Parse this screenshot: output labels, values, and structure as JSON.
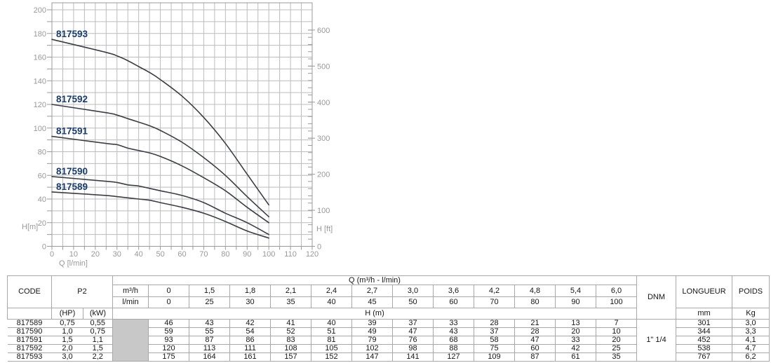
{
  "chart_data": {
    "type": "line",
    "title": "",
    "xlabel": "Q [l/min]",
    "ylabel_left": "H[m]",
    "ylabel_right": "H [ft]",
    "xlim": [
      0,
      120
    ],
    "ylim_left_m": [
      0,
      200
    ],
    "ylim_right_ft": [
      0,
      600
    ],
    "grid": "on",
    "x_grid_step": 5,
    "y_grid_step_m": 10,
    "x": [
      0,
      25,
      30,
      35,
      40,
      45,
      50,
      60,
      70,
      80,
      90,
      100
    ],
    "x_tick_labels": [
      0,
      10,
      20,
      30,
      40,
      50,
      60,
      70,
      80,
      90,
      100,
      110,
      120
    ],
    "left_tick_labels_m": [
      0,
      20,
      40,
      60,
      80,
      100,
      120,
      140,
      160,
      180,
      200
    ],
    "left_minor_step_m": 10,
    "right_tick_labels_ft": [
      0,
      100,
      200,
      300,
      400,
      500,
      600
    ],
    "right_minor_step_ft": 20,
    "series": [
      {
        "name": "817589",
        "values": [
          46,
          43,
          42,
          41,
          40,
          39,
          37,
          33,
          28,
          21,
          13,
          7
        ]
      },
      {
        "name": "817590",
        "values": [
          59,
          55,
          54,
          52,
          51,
          49,
          47,
          43,
          37,
          28,
          20,
          10
        ]
      },
      {
        "name": "817591",
        "values": [
          93,
          87,
          86,
          83,
          81,
          79,
          76,
          68,
          58,
          47,
          33,
          20
        ]
      },
      {
        "name": "817592",
        "values": [
          120,
          113,
          111,
          108,
          105,
          102,
          98,
          88,
          75,
          60,
          42,
          25
        ]
      },
      {
        "name": "817593",
        "values": [
          175,
          164,
          161,
          157,
          152,
          147,
          141,
          127,
          109,
          87,
          61,
          35
        ]
      }
    ],
    "legend_position": "curve-start-labels"
  },
  "colors": {
    "curve": "#3a3d43",
    "curve_label": "#1a3c6e",
    "grid": "#bcbcbc",
    "frame": "#9a9a9a",
    "axis_text": "#999999",
    "table_line": "#a8a8a8",
    "gray_cell": "#c8c8c8",
    "table_text": "#151515"
  },
  "table": {
    "headers": {
      "code": "CODE",
      "p2": "P2",
      "hp": "(HP)",
      "kw": "(kW)",
      "q_group": "Q (m³/h - l/min)",
      "m3h": "m³/h",
      "lmin": "l/min",
      "h_m": "H (m)",
      "dnm": "DNM",
      "longueur": "LONGUEUR",
      "poids": "POIDS",
      "mm": "mm",
      "kg": "Kg"
    },
    "m3h_values": [
      "0",
      "1,5",
      "1,8",
      "2,1",
      "2,4",
      "2,7",
      "3,0",
      "3,6",
      "4,2",
      "4,8",
      "5,4",
      "6,0"
    ],
    "lmin_values": [
      "0",
      "25",
      "30",
      "35",
      "40",
      "45",
      "50",
      "60",
      "70",
      "80",
      "90",
      "100"
    ],
    "dnm_value": "1\" 1/4",
    "rows": [
      {
        "code": "817589",
        "hp": "0,75",
        "kw": "0,55",
        "h": [
          "46",
          "43",
          "42",
          "41",
          "40",
          "39",
          "37",
          "33",
          "28",
          "21",
          "13",
          "7"
        ],
        "longueur": "301",
        "poids": "3,0"
      },
      {
        "code": "817590",
        "hp": "1,0",
        "kw": "0,75",
        "h": [
          "59",
          "55",
          "54",
          "52",
          "51",
          "49",
          "47",
          "43",
          "37",
          "28",
          "20",
          "10"
        ],
        "longueur": "344",
        "poids": "3,3"
      },
      {
        "code": "817591",
        "hp": "1,5",
        "kw": "1,1",
        "h": [
          "93",
          "87",
          "86",
          "83",
          "81",
          "79",
          "76",
          "68",
          "58",
          "47",
          "33",
          "20"
        ],
        "longueur": "452",
        "poids": "4,1"
      },
      {
        "code": "817592",
        "hp": "2,0",
        "kw": "1,5",
        "h": [
          "120",
          "113",
          "111",
          "108",
          "105",
          "102",
          "98",
          "88",
          "75",
          "60",
          "42",
          "25"
        ],
        "longueur": "538",
        "poids": "4,7"
      },
      {
        "code": "817593",
        "hp": "3,0",
        "kw": "2,2",
        "h": [
          "175",
          "164",
          "161",
          "157",
          "152",
          "147",
          "141",
          "127",
          "109",
          "87",
          "61",
          "35"
        ],
        "longueur": "767",
        "poids": "6,2"
      }
    ]
  }
}
